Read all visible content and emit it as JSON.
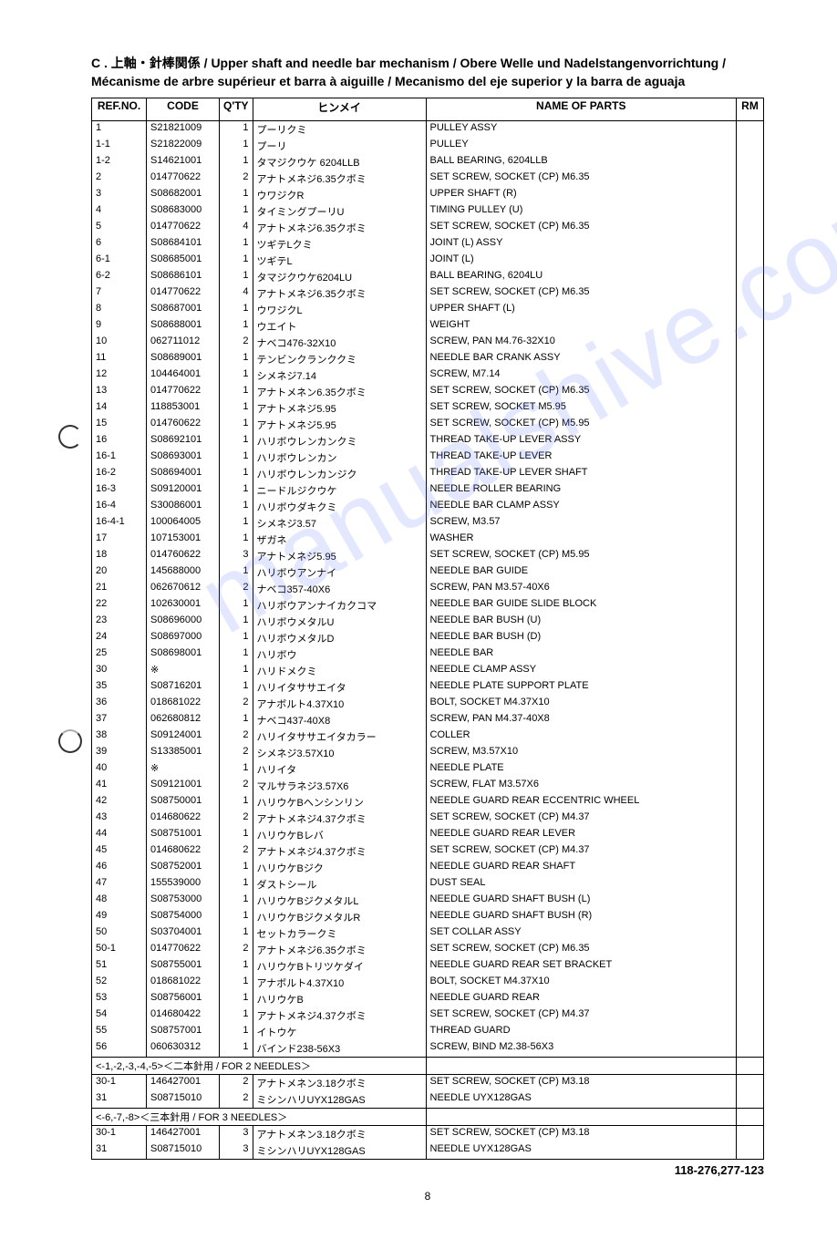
{
  "section_title": "C . 上軸・針棒関係 / Upper shaft and needle bar mechanism / Obere Welle und Nadelstangenvorrichtung / Mécanisme de arbre supérieur et barra à aiguille / Mecanismo del eje superior y la barra de aguaja",
  "headers": {
    "ref": "REF.NO.",
    "code": "CODE",
    "qty": "Q'TY",
    "jname": "ヒンメイ",
    "pname": "NAME OF PARTS",
    "rm": "RM"
  },
  "rows": [
    {
      "ref": "1",
      "code": "S21821009",
      "qty": "1",
      "jname": "プーリクミ",
      "pname": "PULLEY ASSY"
    },
    {
      "ref": "1-1",
      "code": "S21822009",
      "qty": "1",
      "jname": "プーリ",
      "pname": "PULLEY"
    },
    {
      "ref": "1-2",
      "code": "S14621001",
      "qty": "1",
      "jname": "タマジクウケ 6204LLB",
      "pname": "BALL BEARING, 6204LLB"
    },
    {
      "ref": "2",
      "code": "014770622",
      "qty": "2",
      "jname": "アナトメネジ6.35クボミ",
      "pname": "SET SCREW, SOCKET (CP) M6.35"
    },
    {
      "ref": "3",
      "code": "S08682001",
      "qty": "1",
      "jname": "ウワジクR",
      "pname": "UPPER SHAFT (R)"
    },
    {
      "ref": "4",
      "code": "S08683000",
      "qty": "1",
      "jname": "タイミングプーリU",
      "pname": "TIMING PULLEY (U)"
    },
    {
      "ref": "5",
      "code": "014770622",
      "qty": "4",
      "jname": "アナトメネジ6.35クボミ",
      "pname": "SET SCREW, SOCKET (CP) M6.35"
    },
    {
      "ref": "6",
      "code": "S08684101",
      "qty": "1",
      "jname": "ツギテLクミ",
      "pname": "JOINT (L) ASSY"
    },
    {
      "ref": "6-1",
      "code": "S08685001",
      "qty": "1",
      "jname": "ツギテL",
      "pname": "JOINT (L)"
    },
    {
      "ref": "6-2",
      "code": "S08686101",
      "qty": "1",
      "jname": "タマジクウケ6204LU",
      "pname": "BALL BEARING, 6204LU"
    },
    {
      "ref": "7",
      "code": "014770622",
      "qty": "4",
      "jname": "アナトメネジ6.35クボミ",
      "pname": "SET SCREW, SOCKET (CP) M6.35"
    },
    {
      "ref": "8",
      "code": "S08687001",
      "qty": "1",
      "jname": "ウワジクL",
      "pname": "UPPER SHAFT (L)"
    },
    {
      "ref": "9",
      "code": "S08688001",
      "qty": "1",
      "jname": "ウエイト",
      "pname": "WEIGHT"
    },
    {
      "ref": "10",
      "code": "062711012",
      "qty": "2",
      "jname": "ナベコ476-32X10",
      "pname": "SCREW, PAN M4.76-32X10"
    },
    {
      "ref": "11",
      "code": "S08689001",
      "qty": "1",
      "jname": "テンビンクランククミ",
      "pname": "NEEDLE BAR CRANK ASSY"
    },
    {
      "ref": "12",
      "code": "104464001",
      "qty": "1",
      "jname": "シメネジ7.14",
      "pname": "SCREW, M7.14"
    },
    {
      "ref": "13",
      "code": "014770622",
      "qty": "1",
      "jname": "アナトメネン6.35クボミ",
      "pname": "SET SCREW, SOCKET (CP) M6.35"
    },
    {
      "ref": "14",
      "code": "118853001",
      "qty": "1",
      "jname": "アナトメネジ5.95",
      "pname": "SET SCREW, SOCKET M5.95"
    },
    {
      "ref": "15",
      "code": "014760622",
      "qty": "1",
      "jname": "アナトメネジ5.95",
      "pname": "SET SCREW, SOCKET (CP) M5.95"
    },
    {
      "ref": "16",
      "code": "S08692101",
      "qty": "1",
      "jname": "ハリボウレンカンクミ",
      "pname": "THREAD TAKE-UP LEVER ASSY"
    },
    {
      "ref": "16-1",
      "code": "S08693001",
      "qty": "1",
      "jname": "ハリボウレンカン",
      "pname": "THREAD TAKE-UP LEVER"
    },
    {
      "ref": "16-2",
      "code": "S08694001",
      "qty": "1",
      "jname": "ハリボウレンカンジク",
      "pname": "THREAD TAKE-UP LEVER SHAFT"
    },
    {
      "ref": "16-3",
      "code": "S09120001",
      "qty": "1",
      "jname": "ニードルジクウケ",
      "pname": "NEEDLE ROLLER BEARING"
    },
    {
      "ref": "16-4",
      "code": "S30086001",
      "qty": "1",
      "jname": "ハリボウダキクミ",
      "pname": "NEEDLE BAR CLAMP ASSY"
    },
    {
      "ref": "16-4-1",
      "code": "100064005",
      "qty": "1",
      "jname": "シメネジ3.57",
      "pname": "SCREW, M3.57"
    },
    {
      "ref": "17",
      "code": "107153001",
      "qty": "1",
      "jname": "ザガネ",
      "pname": "WASHER"
    },
    {
      "ref": "18",
      "code": "014760622",
      "qty": "3",
      "jname": "アナトメネジ5.95",
      "pname": "SET SCREW, SOCKET (CP) M5.95"
    },
    {
      "ref": "20",
      "code": "145688000",
      "qty": "1",
      "jname": "ハリボウアンナイ",
      "pname": "NEEDLE BAR GUIDE"
    },
    {
      "ref": "21",
      "code": "062670612",
      "qty": "2",
      "jname": "ナベコ357-40X6",
      "pname": "SCREW, PAN M3.57-40X6"
    },
    {
      "ref": "22",
      "code": "102630001",
      "qty": "1",
      "jname": "ハリボウアンナイカクコマ",
      "pname": "NEEDLE BAR GUIDE SLIDE BLOCK"
    },
    {
      "ref": "23",
      "code": "S08696000",
      "qty": "1",
      "jname": "ハリボウメタルU",
      "pname": "NEEDLE BAR BUSH (U)"
    },
    {
      "ref": "24",
      "code": "S08697000",
      "qty": "1",
      "jname": "ハリボウメタルD",
      "pname": "NEEDLE BAR BUSH (D)"
    },
    {
      "ref": "25",
      "code": "S08698001",
      "qty": "1",
      "jname": "ハリボウ",
      "pname": "NEEDLE BAR"
    },
    {
      "ref": "30",
      "code": "※",
      "qty": "1",
      "jname": "ハリドメクミ",
      "pname": "NEEDLE CLAMP ASSY"
    },
    {
      "ref": "35",
      "code": "S08716201",
      "qty": "1",
      "jname": "ハリイタササエイタ",
      "pname": "NEEDLE PLATE SUPPORT PLATE"
    },
    {
      "ref": "36",
      "code": "018681022",
      "qty": "2",
      "jname": "アナボルト4.37X10",
      "pname": "BOLT, SOCKET M4.37X10"
    },
    {
      "ref": "37",
      "code": "062680812",
      "qty": "1",
      "jname": "ナベコ437-40X8",
      "pname": "SCREW, PAN M4.37-40X8"
    },
    {
      "ref": "38",
      "code": "S09124001",
      "qty": "2",
      "jname": "ハリイタササエイタカラー",
      "pname": "COLLER"
    },
    {
      "ref": "39",
      "code": "S13385001",
      "qty": "2",
      "jname": "シメネジ3.57X10",
      "pname": "SCREW, M3.57X10"
    },
    {
      "ref": "40",
      "code": "※",
      "qty": "1",
      "jname": "ハリイタ",
      "pname": "NEEDLE PLATE"
    },
    {
      "ref": "41",
      "code": "S09121001",
      "qty": "2",
      "jname": "マルサラネジ3.57X6",
      "pname": "SCREW, FLAT M3.57X6"
    },
    {
      "ref": "42",
      "code": "S08750001",
      "qty": "1",
      "jname": "ハリウケBヘンシンリン",
      "pname": "NEEDLE GUARD REAR ECCENTRIC WHEEL"
    },
    {
      "ref": "43",
      "code": "014680622",
      "qty": "2",
      "jname": "アナトメネジ4.37クボミ",
      "pname": "SET SCREW, SOCKET (CP) M4.37"
    },
    {
      "ref": "44",
      "code": "S08751001",
      "qty": "1",
      "jname": "ハリウケBレバ",
      "pname": "NEEDLE GUARD REAR LEVER"
    },
    {
      "ref": "45",
      "code": "014680622",
      "qty": "2",
      "jname": "アナトメネジ4.37クボミ",
      "pname": "SET SCREW, SOCKET (CP) M4.37"
    },
    {
      "ref": "46",
      "code": "S08752001",
      "qty": "1",
      "jname": "ハリウケBジク",
      "pname": "NEEDLE GUARD REAR SHAFT"
    },
    {
      "ref": "47",
      "code": "155539000",
      "qty": "1",
      "jname": "ダストシール",
      "pname": "DUST SEAL"
    },
    {
      "ref": "48",
      "code": "S08753000",
      "qty": "1",
      "jname": "ハリウケBジクメタルL",
      "pname": "NEEDLE GUARD SHAFT BUSH (L)"
    },
    {
      "ref": "49",
      "code": "S08754000",
      "qty": "1",
      "jname": "ハリウケBジクメタルR",
      "pname": "NEEDLE GUARD SHAFT BUSH (R)"
    },
    {
      "ref": "50",
      "code": "S03704001",
      "qty": "1",
      "jname": "セットカラークミ",
      "pname": "SET COLLAR ASSY"
    },
    {
      "ref": "50-1",
      "code": "014770622",
      "qty": "2",
      "jname": "アナトメネジ6.35クボミ",
      "pname": "SET SCREW, SOCKET (CP) M6.35"
    },
    {
      "ref": "51",
      "code": "S08755001",
      "qty": "1",
      "jname": "ハリウケBトリツケダイ",
      "pname": "NEEDLE GUARD REAR SET BRACKET"
    },
    {
      "ref": "52",
      "code": "018681022",
      "qty": "1",
      "jname": "アナボルト4.37X10",
      "pname": "BOLT, SOCKET M4.37X10"
    },
    {
      "ref": "53",
      "code": "S08756001",
      "qty": "1",
      "jname": "ハリウケB",
      "pname": "NEEDLE GUARD REAR"
    },
    {
      "ref": "54",
      "code": "014680422",
      "qty": "1",
      "jname": "アナトメネジ4.37クボミ",
      "pname": "SET SCREW, SOCKET (CP) M4.37"
    },
    {
      "ref": "55",
      "code": "S08757001",
      "qty": "1",
      "jname": "イトウケ",
      "pname": "THREAD GUARD"
    },
    {
      "ref": "56",
      "code": "060630312",
      "qty": "1",
      "jname": "バインド238-56X3",
      "pname": "SCREW, BIND M2.38-56X3"
    }
  ],
  "section1_label": "<-1,-2,-3,-4,-5>＜二本針用 / FOR 2 NEEDLES＞",
  "section1_rows": [
    {
      "ref": "30-1",
      "code": "146427001",
      "qty": "2",
      "jname": "アナトメネン3.18クボミ",
      "pname": "SET SCREW, SOCKET (CP) M3.18"
    },
    {
      "ref": "31",
      "code": "S08715010",
      "qty": "2",
      "jname": "ミシンハリUYX128GAS",
      "pname": "NEEDLE UYX128GAS"
    }
  ],
  "section2_label": "<-6,-7,-8>＜三本針用 / FOR 3 NEEDLES＞",
  "section2_rows": [
    {
      "ref": "30-1",
      "code": "146427001",
      "qty": "3",
      "jname": "アナトメネン3.18クボミ",
      "pname": "SET SCREW, SOCKET (CP) M3.18"
    },
    {
      "ref": "31",
      "code": "S08715010",
      "qty": "3",
      "jname": "ミシンハリUYX128GAS",
      "pname": "NEEDLE UYX128GAS"
    }
  ],
  "footer_ref": "118-276,277-123",
  "page_number": "8",
  "watermark": "manualshive.com"
}
